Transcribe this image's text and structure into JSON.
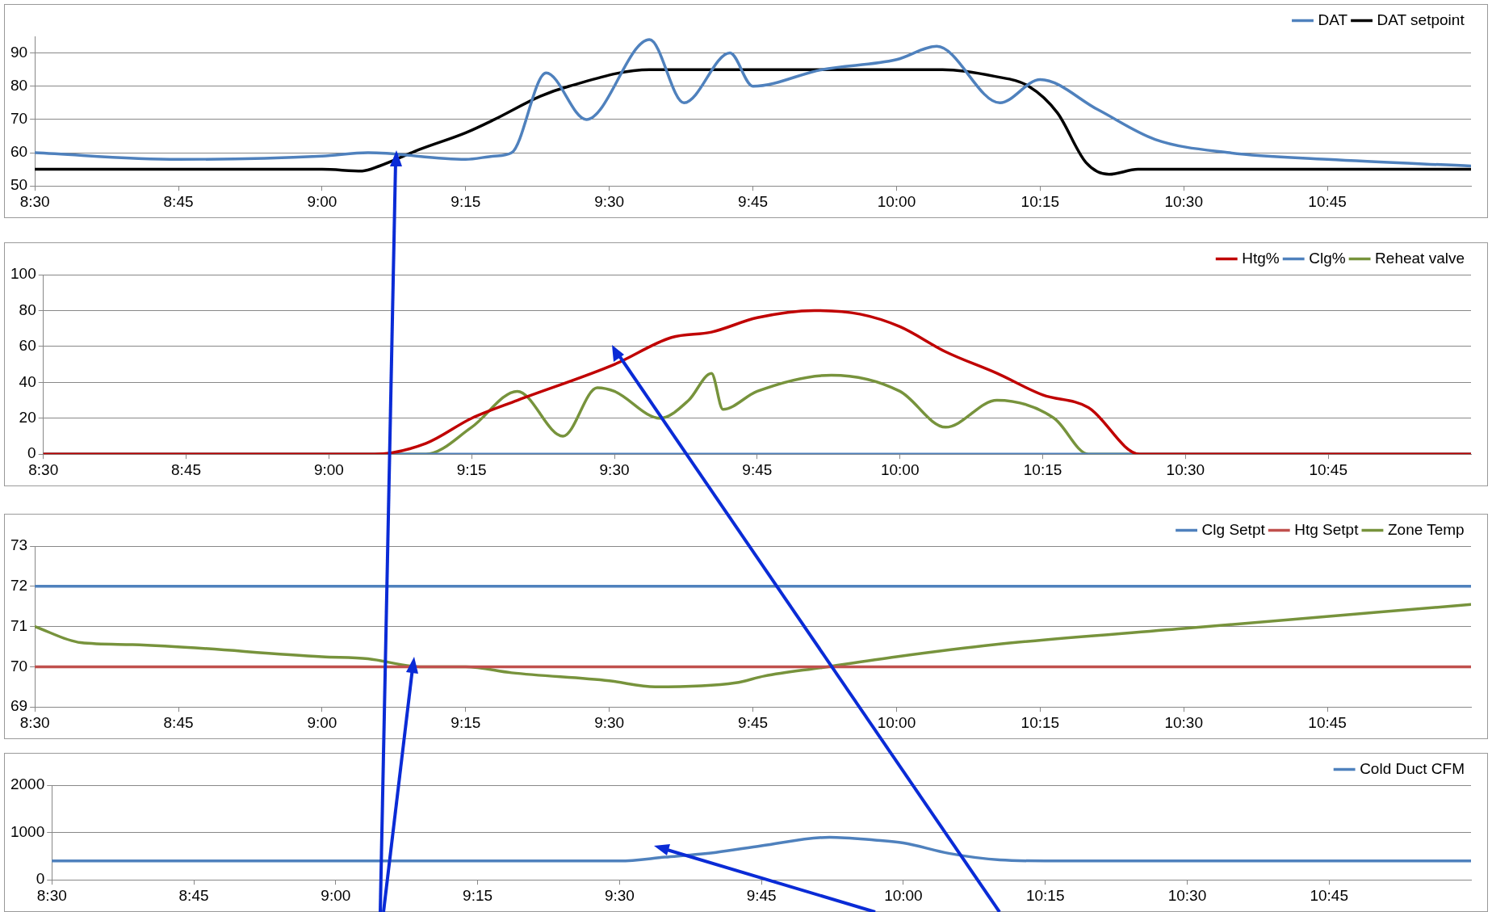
{
  "chart_data": [
    {
      "type": "line",
      "xlim": [
        8.5,
        11.0
      ],
      "xticks": [
        {
          "value": 8.5,
          "label": "8:30"
        },
        {
          "value": 8.75,
          "label": "8:45"
        },
        {
          "value": 9.0,
          "label": "9:00"
        },
        {
          "value": 9.25,
          "label": "9:15"
        },
        {
          "value": 9.5,
          "label": "9:30"
        },
        {
          "value": 9.75,
          "label": "9:45"
        },
        {
          "value": 10.0,
          "label": "10:00"
        },
        {
          "value": 10.25,
          "label": "10:15"
        },
        {
          "value": 10.5,
          "label": "10:30"
        },
        {
          "value": 10.75,
          "label": "10:45"
        }
      ],
      "ylim": [
        50,
        95
      ],
      "yticks": [
        50,
        60,
        70,
        80,
        90
      ],
      "grid": "y",
      "legend": "top right",
      "line_style": "solid",
      "marker": "none",
      "series": [
        {
          "name": "DAT",
          "color": "#4f81bd",
          "x": [
            8.5,
            8.75,
            9.0,
            9.08,
            9.25,
            9.3,
            9.33,
            9.39,
            9.46,
            9.57,
            9.63,
            9.71,
            9.75,
            9.87,
            10.0,
            10.07,
            10.18,
            10.25,
            10.35,
            10.45,
            10.58,
            10.75,
            11.0
          ],
          "values": [
            60,
            58,
            59,
            60,
            58,
            59,
            60,
            84,
            70,
            94,
            75,
            90,
            80,
            85,
            88,
            92,
            75,
            82,
            73,
            64,
            60,
            58,
            56
          ]
        },
        {
          "name": "DAT setpoint",
          "color": "#000000",
          "x": [
            8.5,
            9.0,
            9.07,
            9.1,
            9.17,
            9.25,
            9.3,
            9.38,
            9.43,
            9.57,
            9.83,
            10.08,
            10.17,
            10.23,
            10.28,
            10.33,
            10.37,
            10.42,
            11.0
          ],
          "values": [
            55,
            55,
            54.5,
            56,
            61,
            66,
            70,
            77,
            80,
            85,
            85,
            85,
            83,
            80,
            72,
            57,
            53.5,
            55,
            55
          ]
        }
      ]
    },
    {
      "type": "line",
      "xlim": [
        8.5,
        11.0
      ],
      "xticks": [
        {
          "value": 8.5,
          "label": "8:30"
        },
        {
          "value": 8.75,
          "label": "8:45"
        },
        {
          "value": 9.0,
          "label": "9:00"
        },
        {
          "value": 9.25,
          "label": "9:15"
        },
        {
          "value": 9.5,
          "label": "9:30"
        },
        {
          "value": 9.75,
          "label": "9:45"
        },
        {
          "value": 10.0,
          "label": "10:00"
        },
        {
          "value": 10.25,
          "label": "10:15"
        },
        {
          "value": 10.5,
          "label": "10:30"
        },
        {
          "value": 10.75,
          "label": "10:45"
        }
      ],
      "ylim": [
        0,
        100
      ],
      "yticks": [
        0,
        20,
        40,
        60,
        80,
        100
      ],
      "grid": "y",
      "legend": "top right",
      "line_style": "solid",
      "marker": "none",
      "series": [
        {
          "name": "Htg%",
          "color": "#c00000",
          "x": [
            8.5,
            9.08,
            9.17,
            9.25,
            9.33,
            9.5,
            9.6,
            9.67,
            9.75,
            9.85,
            9.93,
            10.0,
            10.08,
            10.17,
            10.25,
            10.33,
            10.42,
            11.0
          ],
          "values": [
            0,
            0,
            6,
            20,
            30,
            50,
            65,
            68,
            76,
            80,
            78,
            71,
            57,
            45,
            33,
            26,
            0,
            0
          ]
        },
        {
          "name": "Clg%",
          "color": "#4f81bd",
          "x": [
            8.5,
            11.0
          ],
          "values": [
            0,
            0
          ]
        },
        {
          "name": "Reheat valve",
          "color": "#77933c",
          "x": [
            8.5,
            9.17,
            9.25,
            9.33,
            9.41,
            9.47,
            9.5,
            9.58,
            9.63,
            9.67,
            9.69,
            9.75,
            9.88,
            10.0,
            10.08,
            10.17,
            10.27,
            10.33,
            11.0
          ],
          "values": [
            0,
            0,
            15,
            35,
            10,
            37,
            35,
            20,
            30,
            45,
            25,
            35,
            44,
            35,
            15,
            30,
            20,
            0,
            0
          ]
        }
      ]
    },
    {
      "type": "line",
      "xlim": [
        8.5,
        11.0
      ],
      "xticks": [
        {
          "value": 8.5,
          "label": "8:30"
        },
        {
          "value": 8.75,
          "label": "8:45"
        },
        {
          "value": 9.0,
          "label": "9:00"
        },
        {
          "value": 9.25,
          "label": "9:15"
        },
        {
          "value": 9.5,
          "label": "9:30"
        },
        {
          "value": 9.75,
          "label": "9:45"
        },
        {
          "value": 10.0,
          "label": "10:00"
        },
        {
          "value": 10.25,
          "label": "10:15"
        },
        {
          "value": 10.5,
          "label": "10:30"
        },
        {
          "value": 10.75,
          "label": "10:45"
        }
      ],
      "ylim": [
        69,
        73
      ],
      "yticks": [
        69,
        70,
        71,
        72,
        73
      ],
      "grid": "y",
      "legend": "top right",
      "line_style": "solid",
      "marker": "none",
      "series": [
        {
          "name": "Clg Setpt",
          "color": "#4f81bd",
          "x": [
            8.5,
            11.0
          ],
          "values": [
            72,
            72
          ]
        },
        {
          "name": "Htg Setpt",
          "color": "#c0504d",
          "x": [
            8.5,
            11.0
          ],
          "values": [
            70,
            70
          ]
        },
        {
          "name": "Zone Temp",
          "color": "#77933c",
          "x": [
            8.5,
            8.58,
            8.67,
            9.0,
            9.08,
            9.17,
            9.25,
            9.33,
            9.5,
            9.58,
            9.72,
            9.77,
            9.87,
            10.0,
            10.17,
            10.5,
            11.0
          ],
          "values": [
            71,
            70.6,
            70.55,
            70.25,
            70.2,
            70,
            70,
            69.85,
            69.65,
            69.5,
            69.6,
            69.77,
            69.98,
            70.25,
            70.55,
            70.95,
            71.55
          ]
        }
      ]
    },
    {
      "type": "line",
      "xlim": [
        8.5,
        11.0
      ],
      "xticks": [
        {
          "value": 8.5,
          "label": "8:30"
        },
        {
          "value": 8.75,
          "label": "8:45"
        },
        {
          "value": 9.0,
          "label": "9:00"
        },
        {
          "value": 9.25,
          "label": "9:15"
        },
        {
          "value": 9.5,
          "label": "9:30"
        },
        {
          "value": 9.75,
          "label": "9:45"
        },
        {
          "value": 10.0,
          "label": "10:00"
        },
        {
          "value": 10.25,
          "label": "10:15"
        },
        {
          "value": 10.5,
          "label": "10:30"
        },
        {
          "value": 10.75,
          "label": "10:45"
        }
      ],
      "ylim": [
        0,
        2000
      ],
      "yticks": [
        0,
        1000,
        2000
      ],
      "grid": "y",
      "legend": "top right",
      "line_style": "solid",
      "marker": "none",
      "series": [
        {
          "name": "Cold Duct CFM",
          "color": "#4f81bd",
          "x": [
            8.5,
            9.5,
            9.58,
            9.67,
            9.75,
            9.87,
            9.95,
            10.0,
            10.08,
            10.17,
            10.25,
            11.0
          ],
          "values": [
            400,
            400,
            480,
            580,
            720,
            900,
            840,
            780,
            560,
            420,
            400,
            400
          ]
        }
      ]
    }
  ]
}
